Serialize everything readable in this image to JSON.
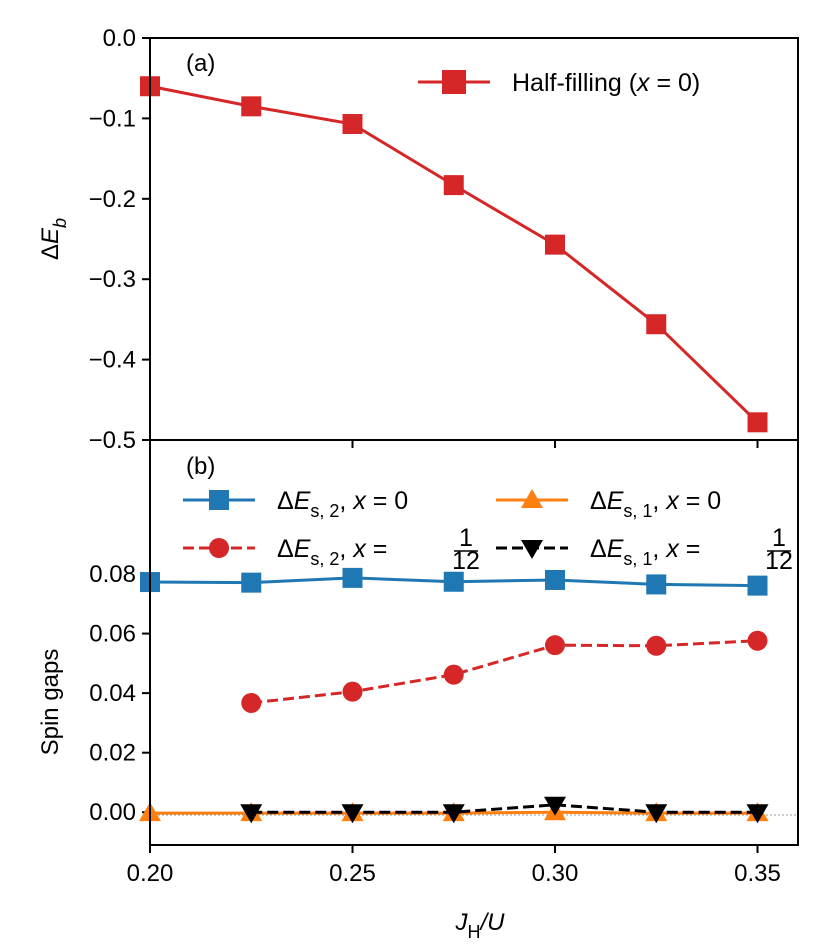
{
  "chart_data": [
    {
      "panel_label": "(a)",
      "type": "line",
      "xlim": [
        0.2,
        0.36
      ],
      "ylim": [
        -0.5,
        0.0
      ],
      "ylabel": "ΔE_b",
      "yticks": [
        0.0,
        -0.1,
        -0.2,
        -0.3,
        -0.4,
        -0.5
      ],
      "ytick_labels": [
        "0.0",
        "−0.1",
        "−0.2",
        "−0.3",
        "−0.4",
        "−0.5"
      ],
      "series": [
        {
          "name": "Half-filling (x = 0)",
          "legend_text": "Half-filling (",
          "legend_var": "x",
          "legend_eq": " = 0)",
          "color": "#d62728",
          "marker": "square",
          "linestyle": "solid",
          "x": [
            0.2,
            0.225,
            0.25,
            0.275,
            0.3,
            0.325,
            0.35
          ],
          "y": [
            -0.06,
            -0.085,
            -0.107,
            -0.183,
            -0.257,
            -0.356,
            -0.478
          ]
        }
      ]
    },
    {
      "panel_label": "(b)",
      "type": "line",
      "xlim": [
        0.2,
        0.36
      ],
      "ylim": [
        -0.011,
        0.125
      ],
      "ylabel": "Spin gaps",
      "xlabel": "J_H/U",
      "xticks": [
        0.2,
        0.25,
        0.3,
        0.35
      ],
      "xtick_labels": [
        "0.20",
        "0.25",
        "0.30",
        "0.35"
      ],
      "yticks": [
        0.0,
        0.02,
        0.04,
        0.06,
        0.08
      ],
      "ytick_labels": [
        "0.00",
        "0.02",
        "0.04",
        "0.06",
        "0.08"
      ],
      "series": [
        {
          "name": "ΔE_s,2, x = 0",
          "sub": "s, 2",
          "eq": "= 0",
          "color": "#1f77b4",
          "marker": "square",
          "linestyle": "solid",
          "x": [
            0.2,
            0.225,
            0.25,
            0.275,
            0.3,
            0.325,
            0.35
          ],
          "y": [
            0.0773,
            0.0771,
            0.0787,
            0.0774,
            0.078,
            0.0765,
            0.0761
          ]
        },
        {
          "name": "ΔE_s,1, x = 0",
          "sub": "s, 1",
          "eq": "= 0",
          "color": "#ff7f0e",
          "marker": "triangle-up",
          "linestyle": "solid",
          "x": [
            0.2,
            0.225,
            0.25,
            0.275,
            0.3,
            0.325,
            0.35
          ],
          "y": [
            -0.0003,
            -0.0003,
            -0.0003,
            -0.0003,
            0.0,
            -0.0003,
            -0.0003
          ]
        },
        {
          "name": "ΔE_s,2, x = 1/12",
          "sub": "s, 2",
          "eq": "=",
          "frac_num": "1",
          "frac_den": "12",
          "color": "#d62728",
          "marker": "circle",
          "linestyle": "dashed",
          "x": [
            0.225,
            0.25,
            0.275,
            0.3,
            0.325,
            0.35
          ],
          "y": [
            0.0367,
            0.0405,
            0.0462,
            0.0561,
            0.0559,
            0.0576
          ]
        },
        {
          "name": "ΔE_s,1, x = 1/12",
          "sub": "s, 1",
          "eq": "=",
          "frac_num": "1",
          "frac_den": "12",
          "color": "#000000",
          "marker": "triangle-down",
          "linestyle": "dashed",
          "x": [
            0.225,
            0.25,
            0.275,
            0.3,
            0.325,
            0.35
          ],
          "y": [
            0.0,
            0.0,
            0.0,
            0.0025,
            0.0,
            0.0
          ]
        }
      ]
    }
  ],
  "axis_symbols": {
    "delta": "Δ",
    "E": "E",
    "b": "b",
    "x": "x",
    "J": "J",
    "H": "H",
    "over_U": "/U"
  }
}
